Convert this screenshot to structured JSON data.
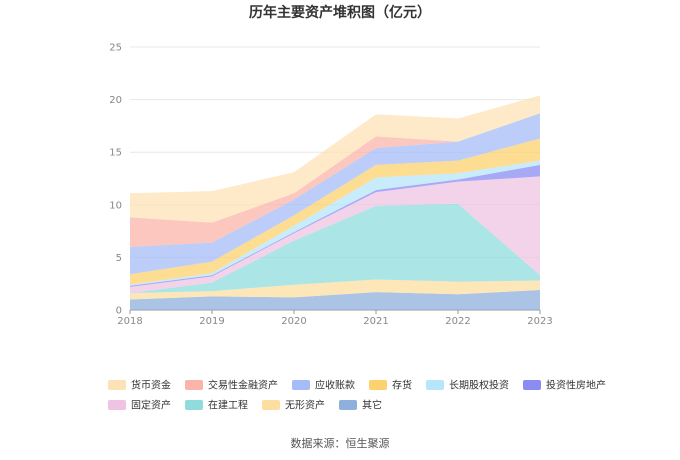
{
  "chart_data": {
    "type": "area",
    "stacked": true,
    "title": "历年主要资产堆积图（亿元）",
    "x": [
      "2018",
      "2019",
      "2020",
      "2021",
      "2022",
      "2023"
    ],
    "ylim": [
      0,
      25
    ],
    "yticks": [
      0,
      5,
      10,
      15,
      20,
      25
    ],
    "grid": true,
    "legend_position": "bottom",
    "series": [
      {
        "name": "其它",
        "color": "#8fb0dc",
        "values": [
          1.0,
          1.3,
          1.2,
          1.7,
          1.5,
          1.9
        ]
      },
      {
        "name": "无形资产",
        "color": "#fcdfa0",
        "values": [
          0.6,
          0.5,
          1.2,
          1.2,
          1.2,
          0.9
        ]
      },
      {
        "name": "在建工程",
        "color": "#90dcdc",
        "values": [
          0.0,
          0.8,
          4.2,
          7.0,
          7.4,
          0.5
        ]
      },
      {
        "name": "固定资产",
        "color": "#efc4e2",
        "values": [
          0.6,
          0.6,
          0.7,
          1.3,
          2.1,
          9.4
        ]
      },
      {
        "name": "投资性房地产",
        "color": "#8a8cf2",
        "values": [
          0.1,
          0.1,
          0.1,
          0.2,
          0.2,
          1.1
        ]
      },
      {
        "name": "长期股权投资",
        "color": "#b6e6fa",
        "values": [
          0.1,
          0.2,
          0.6,
          1.2,
          0.6,
          0.4
        ]
      },
      {
        "name": "存货",
        "color": "#fcd26e",
        "values": [
          1.0,
          1.1,
          1.0,
          1.2,
          1.2,
          2.1
        ]
      },
      {
        "name": "应收账款",
        "color": "#a6bcf8",
        "values": [
          2.6,
          1.8,
          1.5,
          1.6,
          1.8,
          2.4
        ]
      },
      {
        "name": "交易性金融资产",
        "color": "#fbb4aa",
        "values": [
          2.8,
          1.9,
          0.6,
          1.1,
          0.0,
          0.0
        ]
      },
      {
        "name": "货币资金",
        "color": "#fde2b6",
        "values": [
          2.3,
          3.0,
          2.0,
          2.1,
          2.2,
          1.7
        ]
      }
    ],
    "legend_order": [
      "货币资金",
      "交易性金融资产",
      "应收账款",
      "存货",
      "长期股权投资",
      "投资性房地产",
      "固定资产",
      "在建工程",
      "无形资产",
      "其它"
    ]
  },
  "footer": {
    "source": "数据来源：恒生聚源"
  }
}
